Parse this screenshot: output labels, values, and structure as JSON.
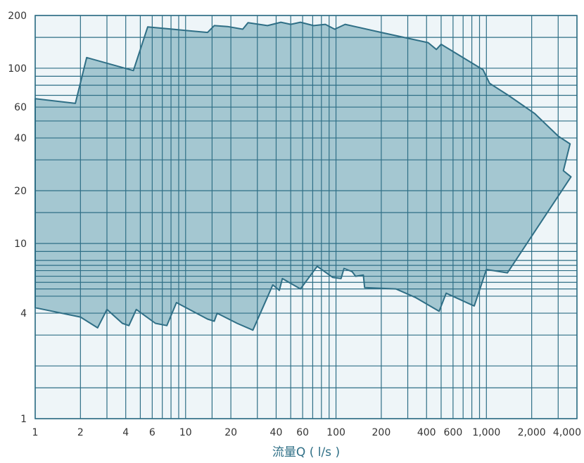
{
  "chart_data": {
    "type": "area",
    "xlabel": "流量Q ( l/s )",
    "ylabel": "",
    "x_scale": "log",
    "y_scale": "log",
    "xlim": [
      1,
      4000
    ],
    "ylim": [
      1,
      200
    ],
    "grid": true,
    "colors": {
      "fill": "#a4c7d1",
      "line": "#2f6f86",
      "grid": "#2f6f86",
      "plot_bg": "#eef5f8"
    },
    "x_tick_labels": [
      {
        "value": 1,
        "label": "1"
      },
      {
        "value": 2,
        "label": "2"
      },
      {
        "value": 4,
        "label": "4"
      },
      {
        "value": 6,
        "label": "6"
      },
      {
        "value": 10,
        "label": "10"
      },
      {
        "value": 20,
        "label": "20"
      },
      {
        "value": 40,
        "label": "40"
      },
      {
        "value": 60,
        "label": "60"
      },
      {
        "value": 100,
        "label": "100"
      },
      {
        "value": 200,
        "label": "200"
      },
      {
        "value": 400,
        "label": "400"
      },
      {
        "value": 600,
        "label": "600"
      },
      {
        "value": 1000,
        "label": "1,000"
      },
      {
        "value": 2000,
        "label": "2,000"
      },
      {
        "value": 4000,
        "label": "4,000"
      }
    ],
    "y_tick_labels": [
      {
        "value": 1,
        "label": "1"
      },
      {
        "value": 4,
        "label": "4"
      },
      {
        "value": 10,
        "label": "10"
      },
      {
        "value": 20,
        "label": "20"
      },
      {
        "value": 40,
        "label": "40"
      },
      {
        "value": 60,
        "label": "60"
      },
      {
        "value": 100,
        "label": "100"
      },
      {
        "value": 200,
        "label": "200"
      }
    ],
    "x_gridlines": [
      1,
      2,
      3,
      4,
      5,
      6,
      7,
      8,
      9,
      10,
      15,
      20,
      30,
      40,
      50,
      60,
      70,
      80,
      90,
      100,
      200,
      300,
      400,
      500,
      600,
      700,
      800,
      900,
      1000,
      2000,
      3000,
      4000
    ],
    "y_gridlines": [
      1,
      1.5,
      2,
      3,
      4,
      5,
      5.5,
      6,
      6.5,
      7,
      7.5,
      8,
      9,
      10,
      15,
      20,
      30,
      40,
      50,
      60,
      70,
      80,
      90,
      100,
      150,
      200
    ],
    "envelope_upper": [
      [
        1,
        67
      ],
      [
        1.85,
        63
      ],
      [
        2.2,
        115
      ],
      [
        4.5,
        97
      ],
      [
        5.6,
        172
      ],
      [
        14,
        160
      ],
      [
        15.5,
        175
      ],
      [
        19,
        173
      ],
      [
        24,
        167
      ],
      [
        26,
        182
      ],
      [
        35,
        175
      ],
      [
        43,
        183
      ],
      [
        50,
        178
      ],
      [
        58,
        183
      ],
      [
        71,
        175
      ],
      [
        85,
        178
      ],
      [
        98,
        167
      ],
      [
        115,
        178
      ],
      [
        200,
        160
      ],
      [
        410,
        140
      ],
      [
        465,
        128
      ],
      [
        500,
        137
      ],
      [
        950,
        98
      ],
      [
        1050,
        82
      ],
      [
        1400,
        70
      ],
      [
        2100,
        55
      ],
      [
        3000,
        41
      ],
      [
        3600,
        37
      ],
      [
        3250,
        26
      ],
      [
        3650,
        24
      ]
    ],
    "envelope_lower": [
      [
        1,
        4.3
      ],
      [
        2,
        3.8
      ],
      [
        2.6,
        3.3
      ],
      [
        3,
        4.2
      ],
      [
        3.8,
        3.5
      ],
      [
        4.2,
        3.4
      ],
      [
        4.7,
        4.2
      ],
      [
        6.3,
        3.5
      ],
      [
        7.5,
        3.4
      ],
      [
        8.7,
        4.6
      ],
      [
        14,
        3.7
      ],
      [
        15.5,
        3.6
      ],
      [
        16.2,
        4
      ],
      [
        22,
        3.5
      ],
      [
        28,
        3.2
      ],
      [
        38,
        5.8
      ],
      [
        42,
        5.4
      ],
      [
        44,
        6.3
      ],
      [
        58,
        5.5
      ],
      [
        75,
        7.4
      ],
      [
        95,
        6.4
      ],
      [
        108,
        6.3
      ],
      [
        113,
        7.2
      ],
      [
        128,
        6.9
      ],
      [
        135,
        6.5
      ],
      [
        152,
        6.6
      ],
      [
        155,
        5.6
      ],
      [
        250,
        5.5
      ],
      [
        340,
        4.9
      ],
      [
        485,
        4.1
      ],
      [
        540,
        5.2
      ],
      [
        780,
        4.5
      ],
      [
        830,
        4.4
      ],
      [
        1000,
        7.1
      ],
      [
        1380,
        6.8
      ],
      [
        3650,
        24
      ]
    ]
  }
}
